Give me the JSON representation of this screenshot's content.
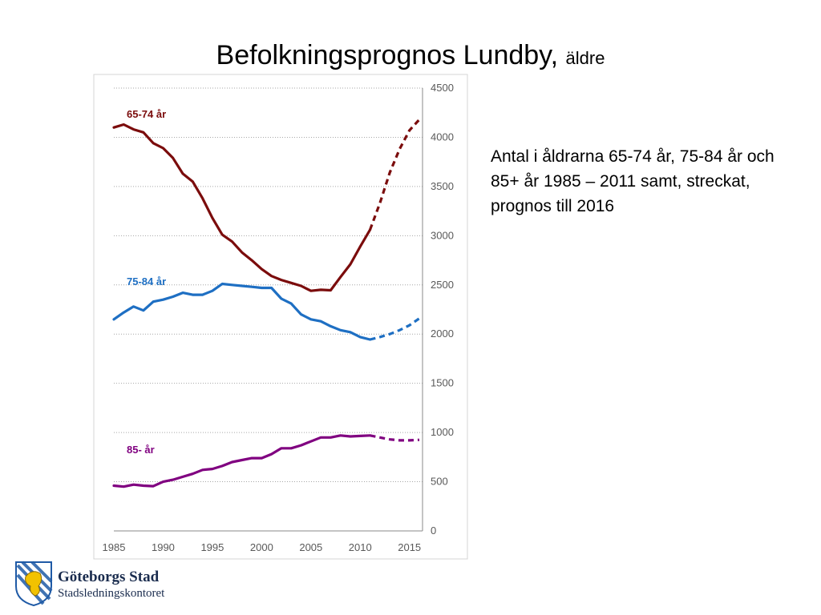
{
  "slide": {
    "title": "Befolkningsprognos Lundby,",
    "subtitle": "äldre",
    "description": "Antal i åldrarna 65-74 år, 75-84 år och 85+ år 1985 – 2011 samt, streckat, prognos till 2016"
  },
  "logo": {
    "name": "Göteborgs Stad",
    "department": "Stadsledningskontoret"
  },
  "chart_data": {
    "type": "line",
    "title": "",
    "xlabel": "",
    "ylabel": "",
    "xlim": [
      1985,
      2016
    ],
    "ylim": [
      0,
      4500
    ],
    "x_ticks": [
      1985,
      1990,
      1995,
      2000,
      2005,
      2010,
      2015
    ],
    "y_ticks": [
      0,
      500,
      1000,
      1500,
      2000,
      2500,
      3000,
      3500,
      4000,
      4500
    ],
    "y_axis_side": "right",
    "grid": "horizontal dotted",
    "forecast_from": 2011,
    "forecast_style": "dashed",
    "series": [
      {
        "name": "65-74 år",
        "color": "#7b0c0c",
        "x": [
          1985,
          1986,
          1987,
          1988,
          1989,
          1990,
          1991,
          1992,
          1993,
          1994,
          1995,
          1996,
          1997,
          1998,
          1999,
          2000,
          2001,
          2002,
          2003,
          2004,
          2005,
          2006,
          2007,
          2008,
          2009,
          2010,
          2011,
          2012,
          2013,
          2014,
          2015,
          2016
        ],
        "y": [
          4100,
          4130,
          4080,
          4050,
          3940,
          3890,
          3790,
          3630,
          3550,
          3380,
          3180,
          3010,
          2940,
          2830,
          2750,
          2660,
          2590,
          2550,
          2520,
          2490,
          2440,
          2450,
          2445,
          2580,
          2710,
          2890,
          3060,
          3330,
          3640,
          3880,
          4070,
          4180
        ]
      },
      {
        "name": "75-84 år",
        "color": "#1e6fc3",
        "x": [
          1985,
          1986,
          1987,
          1988,
          1989,
          1990,
          1991,
          1992,
          1993,
          1994,
          1995,
          1996,
          1997,
          1998,
          1999,
          2000,
          2001,
          2002,
          2003,
          2004,
          2005,
          2006,
          2007,
          2008,
          2009,
          2010,
          2011,
          2012,
          2013,
          2014,
          2015,
          2016
        ],
        "y": [
          2150,
          2220,
          2280,
          2240,
          2330,
          2350,
          2380,
          2420,
          2400,
          2400,
          2440,
          2510,
          2500,
          2490,
          2480,
          2470,
          2470,
          2360,
          2310,
          2200,
          2150,
          2130,
          2080,
          2040,
          2020,
          1970,
          1945,
          1970,
          2000,
          2040,
          2090,
          2160
        ]
      },
      {
        "name": "85- år",
        "color": "#800080",
        "x": [
          1985,
          1986,
          1987,
          1988,
          1989,
          1990,
          1991,
          1992,
          1993,
          1994,
          1995,
          1996,
          1997,
          1998,
          1999,
          2000,
          2001,
          2002,
          2003,
          2004,
          2005,
          2006,
          2007,
          2008,
          2009,
          2010,
          2011,
          2012,
          2013,
          2014,
          2015,
          2016
        ],
        "y": [
          460,
          450,
          470,
          460,
          455,
          500,
          520,
          550,
          580,
          620,
          630,
          660,
          700,
          720,
          740,
          740,
          780,
          840,
          840,
          870,
          910,
          950,
          950,
          970,
          960,
          965,
          970,
          950,
          930,
          920,
          920,
          925
        ]
      }
    ]
  }
}
